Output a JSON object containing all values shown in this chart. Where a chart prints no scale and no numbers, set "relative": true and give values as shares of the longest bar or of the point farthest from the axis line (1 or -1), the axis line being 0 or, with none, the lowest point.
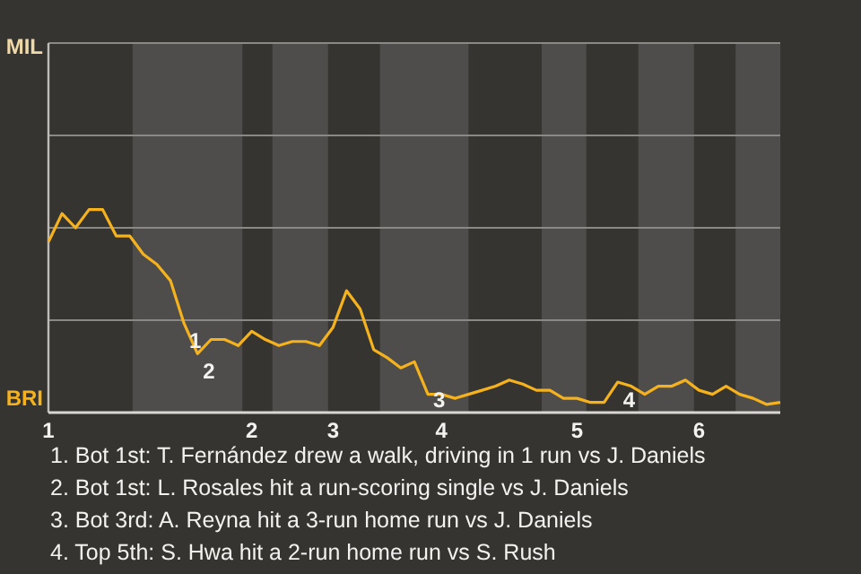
{
  "chart_data": {
    "type": "line",
    "relative": true,
    "categories": [
      "1",
      null,
      null,
      null,
      null,
      null,
      null,
      null,
      null,
      null,
      null,
      null,
      null,
      null,
      null,
      "2",
      null,
      null,
      null,
      null,
      null,
      "3",
      null,
      null,
      null,
      null,
      null,
      null,
      null,
      "4",
      null,
      null,
      null,
      null,
      null,
      null,
      null,
      null,
      null,
      "5",
      null,
      null,
      null,
      null,
      null,
      null,
      null,
      null,
      "6",
      null,
      null,
      null,
      null,
      null,
      null
    ],
    "series": [
      {
        "color": "#f5b21c",
        "values": [
          0.84,
          0.98,
          0.91,
          1,
          1,
          0.87,
          0.87,
          0.78,
          0.73,
          0.65,
          0.44,
          0.29,
          0.36,
          0.36,
          0.33,
          0.4,
          0.36,
          0.33,
          0.35,
          0.35,
          0.33,
          0.42,
          0.6,
          0.51,
          0.31,
          0.27,
          0.22,
          0.25,
          0.09,
          0.09,
          0.07,
          0.09,
          0.11,
          0.13,
          0.16,
          0.14,
          0.11,
          0.11,
          0.07,
          0.07,
          0.05,
          0.05,
          0.15,
          0.13,
          0.09,
          0.13,
          0.13,
          0.16,
          0.11,
          0.09,
          0.13,
          0.09,
          0.07,
          0.04,
          0.05
        ]
      }
    ],
    "marker": "none",
    "ref_lines": [
      {
        "axis": "y",
        "value": 0.455,
        "color": "#8a8986"
      },
      {
        "axis": "y",
        "value": 0.91,
        "color": "#8a8986"
      },
      {
        "axis": "y",
        "value": 1.365,
        "color": "#8a8986"
      }
    ],
    "annotations": [
      {
        "text": "1",
        "y": 0.44
      },
      {
        "text": "2",
        "y": 0.29
      },
      {
        "text": "3",
        "y": 0.09
      },
      {
        "text": "4",
        "y": 0.15
      },
      "MIL",
      "BRI",
      "1. Bot 1st: T. Fernández drew a walk, driving in 1 run vs J. Daniels",
      "2. Bot 1st: L. Rosales hit a run-scoring single vs J. Daniels",
      "3. Bot 3rd: A. Reyna hit a 3-run home run vs J. Daniels",
      "4. Top 5th: S. Hwa hit a 2-run home run vs S. Rush"
    ]
  }
}
